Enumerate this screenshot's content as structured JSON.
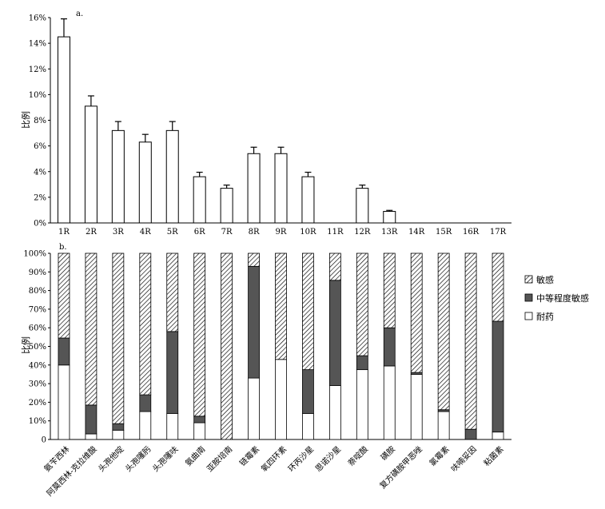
{
  "chart_data": [
    {
      "type": "bar",
      "panel_label": "a.",
      "ylabel": "比例",
      "ylim": [
        0,
        16
      ],
      "yticks": [
        0,
        2,
        4,
        6,
        8,
        10,
        12,
        14,
        16
      ],
      "ytick_labels": [
        "0%",
        "2%",
        "4%",
        "6%",
        "8%",
        "10%",
        "12%",
        "14%",
        "16%"
      ],
      "categories": [
        "1R",
        "2R",
        "3R",
        "4R",
        "5R",
        "6R",
        "7R",
        "8R",
        "9R",
        "10R",
        "11R",
        "12R",
        "13R",
        "14R",
        "15R",
        "16R",
        "17R"
      ],
      "values": [
        14.5,
        9.1,
        7.2,
        6.3,
        7.2,
        3.6,
        2.7,
        5.4,
        5.4,
        3.6,
        0,
        2.7,
        0.9,
        0,
        0,
        0,
        0
      ],
      "errors": [
        1.4,
        0.8,
        0.7,
        0.6,
        0.7,
        0.35,
        0.25,
        0.5,
        0.5,
        0.35,
        0,
        0.25,
        0.08,
        0,
        0,
        0,
        0
      ],
      "bar_color": "#ffffff",
      "edge_color": "#000000"
    },
    {
      "type": "bar",
      "stacked": true,
      "panel_label": "b.",
      "ylabel": "比例",
      "ylim": [
        0,
        100
      ],
      "yticks": [
        0,
        10,
        20,
        30,
        40,
        50,
        60,
        70,
        80,
        90,
        100
      ],
      "ytick_labels": [
        "0",
        "10%",
        "20%",
        "30%",
        "40%",
        "50%",
        "60%",
        "70%",
        "80%",
        "90%",
        "100%"
      ],
      "categories": [
        "氨苄西林",
        "阿莫西林-克拉维酸",
        "头孢他啶",
        "头孢噻肟",
        "头孢噻呋",
        "氨曲南",
        "亚胺培南",
        "链霉素",
        "氧四环素",
        "环丙沙星",
        "恩诺沙星",
        "萘啶酸",
        "磺胺",
        "复方磺胺甲恶唑",
        "氯霉素",
        "呋喃妥因",
        "粘菌素"
      ],
      "series": [
        {
          "name": "耐药",
          "pattern": "white",
          "values": [
            40,
            3,
            5,
            15,
            14,
            9,
            0,
            33,
            43,
            14,
            29,
            37.5,
            39.5,
            35,
            15,
            0,
            4
          ]
        },
        {
          "name": "中等程度敏感",
          "pattern": "dark",
          "values": [
            14.5,
            15.5,
            3.5,
            9,
            44,
            3.5,
            0,
            60,
            0,
            23.5,
            56.5,
            7.5,
            20.5,
            1,
            1,
            5.5,
            59.5
          ]
        },
        {
          "name": "敏感",
          "pattern": "hatch",
          "values": [
            45.5,
            81.5,
            91.5,
            76,
            42,
            87.5,
            100,
            7,
            57,
            62.5,
            14.5,
            55,
            40,
            64,
            84,
            94.5,
            36.5
          ]
        }
      ],
      "legend_order": [
        "敏感",
        "中等程度敏感",
        "耐药"
      ],
      "legend_position": "right",
      "colors": {
        "resistant": "#ffffff",
        "intermediate": "#555555",
        "sensitive_hatch": "#000000"
      }
    }
  ]
}
